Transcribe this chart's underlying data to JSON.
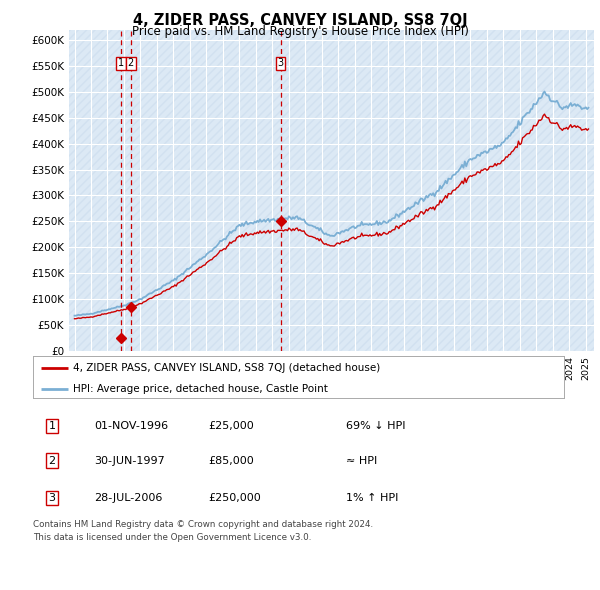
{
  "title": "4, ZIDER PASS, CANVEY ISLAND, SS8 7QJ",
  "subtitle": "Price paid vs. HM Land Registry's House Price Index (HPI)",
  "line_color_red": "#cc0000",
  "line_color_blue": "#7bafd4",
  "sales": [
    {
      "date_year": 1996,
      "date_month": 11,
      "price": 25000,
      "label": "1"
    },
    {
      "date_year": 1997,
      "date_month": 6,
      "price": 85000,
      "label": "2"
    },
    {
      "date_year": 2006,
      "date_month": 7,
      "price": 250000,
      "label": "3"
    }
  ],
  "legend_red": "4, ZIDER PASS, CANVEY ISLAND, SS8 7QJ (detached house)",
  "legend_blue": "HPI: Average price, detached house, Castle Point",
  "table_rows": [
    [
      "1",
      "01-NOV-1996",
      "£25,000",
      "69% ↓ HPI"
    ],
    [
      "2",
      "30-JUN-1997",
      "£85,000",
      "≈ HPI"
    ],
    [
      "3",
      "28-JUL-2006",
      "£250,000",
      "1% ↑ HPI"
    ]
  ],
  "footer": "Contains HM Land Registry data © Crown copyright and database right 2024.\nThis data is licensed under the Open Government Licence v3.0.",
  "ylim": [
    0,
    620000
  ],
  "yticks": [
    0,
    50000,
    100000,
    150000,
    200000,
    250000,
    300000,
    350000,
    400000,
    450000,
    500000,
    550000,
    600000
  ],
  "ytick_labels": [
    "£0",
    "£50K",
    "£100K",
    "£150K",
    "£200K",
    "£250K",
    "£300K",
    "£350K",
    "£400K",
    "£450K",
    "£500K",
    "£550K",
    "£600K"
  ],
  "xstart_year": 1994,
  "xend_year": 2025,
  "plot_bg": "#dce9f5",
  "hatch_color": "#c5d8eb"
}
